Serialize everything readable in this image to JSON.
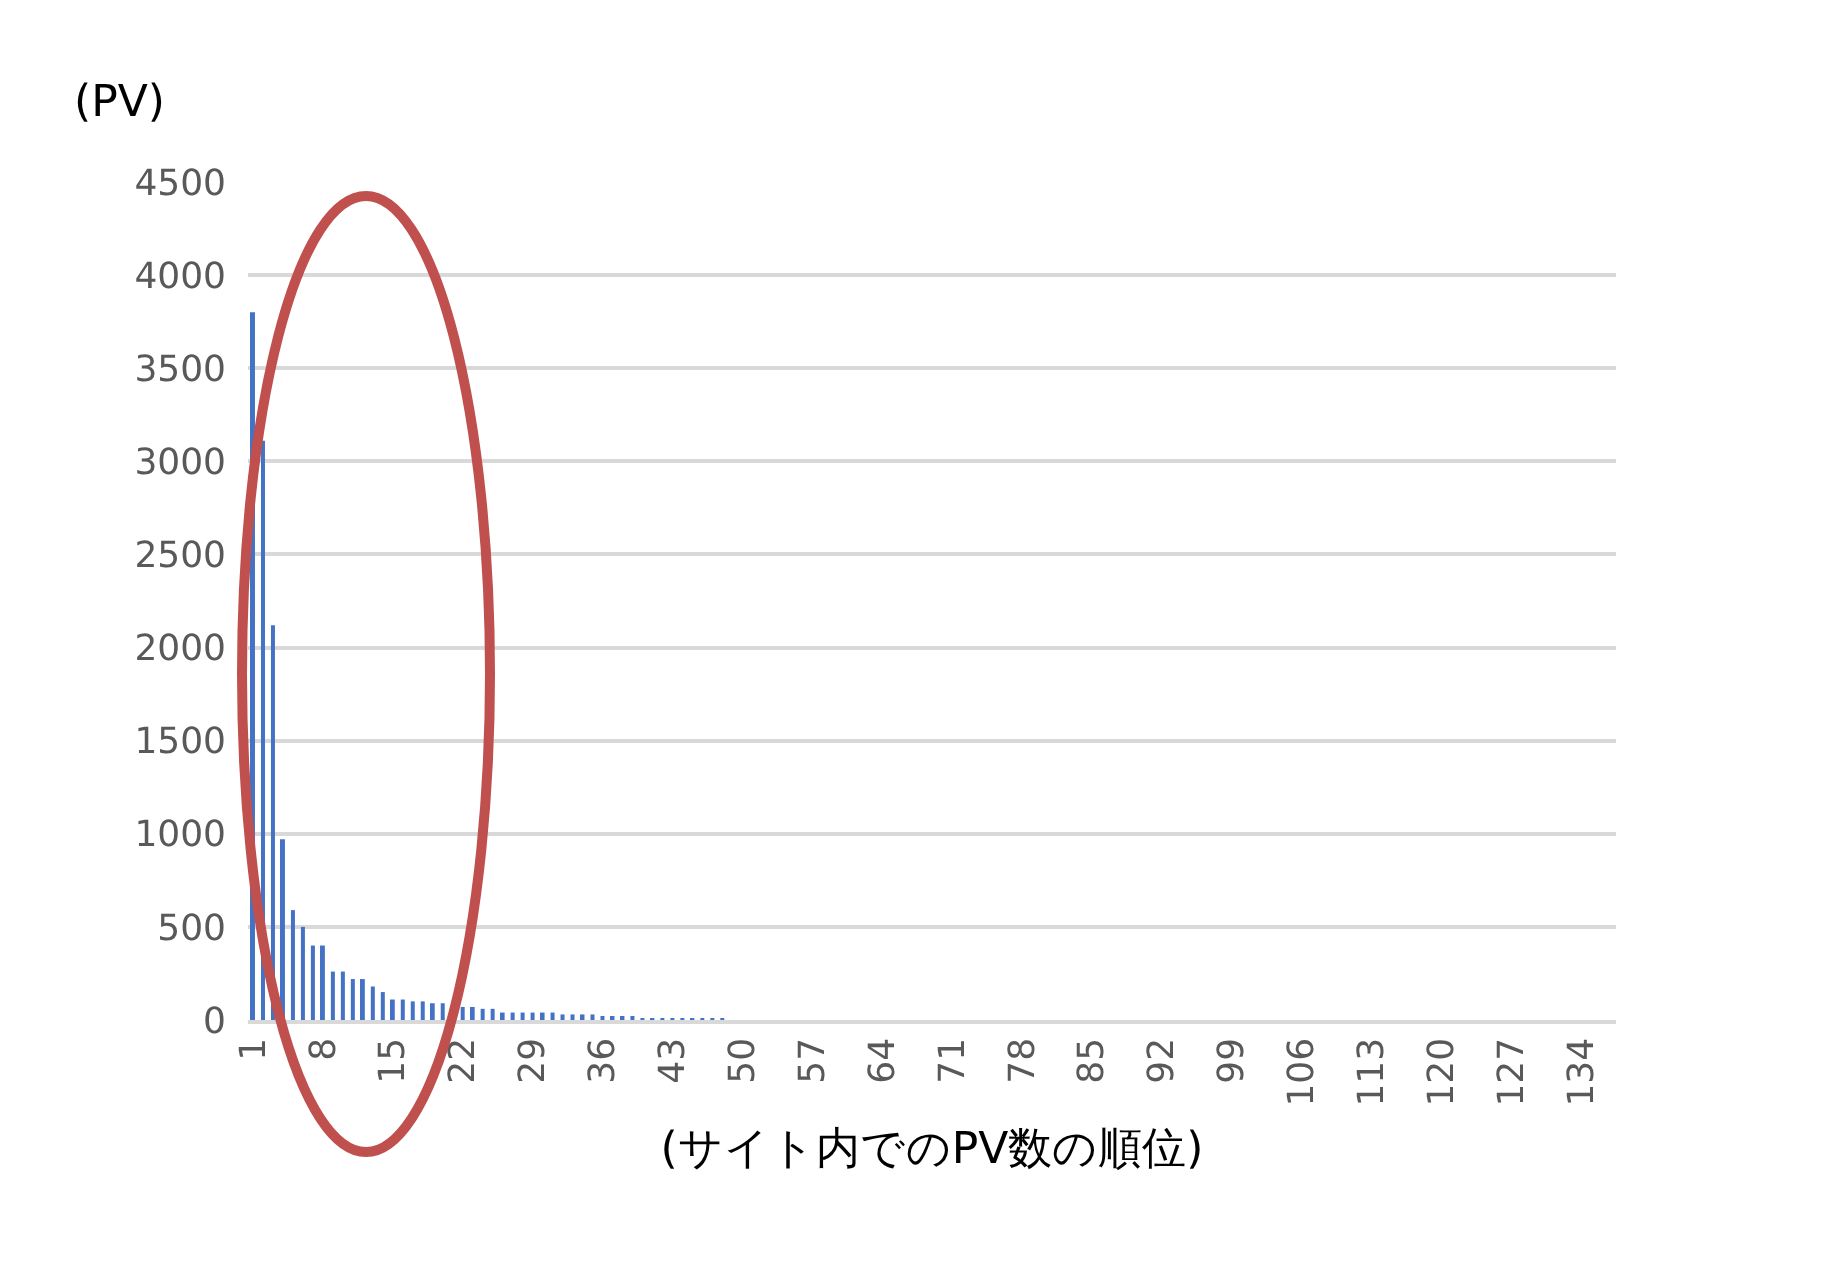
{
  "chart_data": {
    "type": "bar",
    "ylabel": "(PV)",
    "xlabel": "(サイト内でのPV数の順位)",
    "categories": [
      "1",
      null,
      null,
      null,
      null,
      null,
      null,
      "8",
      null,
      null,
      null,
      null,
      null,
      null,
      "15",
      null,
      null,
      null,
      null,
      null,
      null,
      "22",
      null,
      null,
      null,
      null,
      null,
      null,
      "29",
      null,
      null,
      null,
      null,
      null,
      null,
      "36",
      null,
      null,
      null,
      null,
      null,
      null,
      "43",
      null,
      null,
      null,
      null,
      null,
      null,
      "50",
      null,
      null,
      null,
      null,
      null,
      null,
      "57",
      null,
      null,
      null,
      null,
      null,
      null,
      "64",
      null,
      null,
      null,
      null,
      null,
      null,
      "71",
      null,
      null,
      null,
      null,
      null,
      null,
      "78",
      null,
      null,
      null,
      null,
      null,
      null,
      "85",
      null,
      null,
      null,
      null,
      null,
      null,
      "92",
      null,
      null,
      null,
      null,
      null,
      null,
      "99",
      null,
      null,
      null,
      null,
      null,
      null,
      "106",
      null,
      null,
      null,
      null,
      null,
      null,
      "113",
      null,
      null,
      null,
      null,
      null,
      null,
      "120",
      null,
      null,
      null,
      null,
      null,
      null,
      "127",
      null,
      null,
      null,
      null,
      null,
      null,
      "134",
      null,
      null,
      null
    ],
    "values": [
      3800,
      3110,
      2120,
      970,
      590,
      500,
      400,
      400,
      260,
      260,
      220,
      220,
      180,
      150,
      110,
      110,
      100,
      100,
      90,
      90,
      null,
      70,
      70,
      60,
      60,
      40,
      40,
      40,
      40,
      40,
      40,
      30,
      30,
      30,
      30,
      20,
      20,
      20,
      20,
      10,
      10,
      10,
      10,
      10,
      10,
      10,
      10,
      10,
      0,
      0,
      0,
      0,
      0,
      0,
      0,
      0,
      0,
      0,
      0,
      0,
      0,
      0,
      0,
      0,
      0,
      0,
      0,
      0,
      0,
      0,
      0,
      0,
      0,
      0,
      0,
      0,
      0,
      0,
      0,
      0,
      0,
      0,
      0,
      0,
      0,
      0,
      0,
      0,
      0,
      0,
      0,
      0,
      0,
      0,
      0,
      0,
      0,
      0,
      0,
      0,
      0,
      0,
      0,
      0,
      0,
      0,
      0,
      0,
      0,
      0,
      0,
      0,
      0,
      0,
      0,
      0,
      0,
      0,
      0,
      0,
      0,
      0,
      0,
      0,
      0,
      0,
      0,
      0,
      0,
      0,
      0,
      0,
      0,
      0,
      0,
      0,
      0
    ],
    "color": "#4472c4",
    "ylim": [
      0,
      4500
    ],
    "yticks": [
      0,
      500,
      1000,
      1500,
      2000,
      2500,
      3000,
      3500,
      4000,
      4500
    ],
    "grid": "y"
  }
}
